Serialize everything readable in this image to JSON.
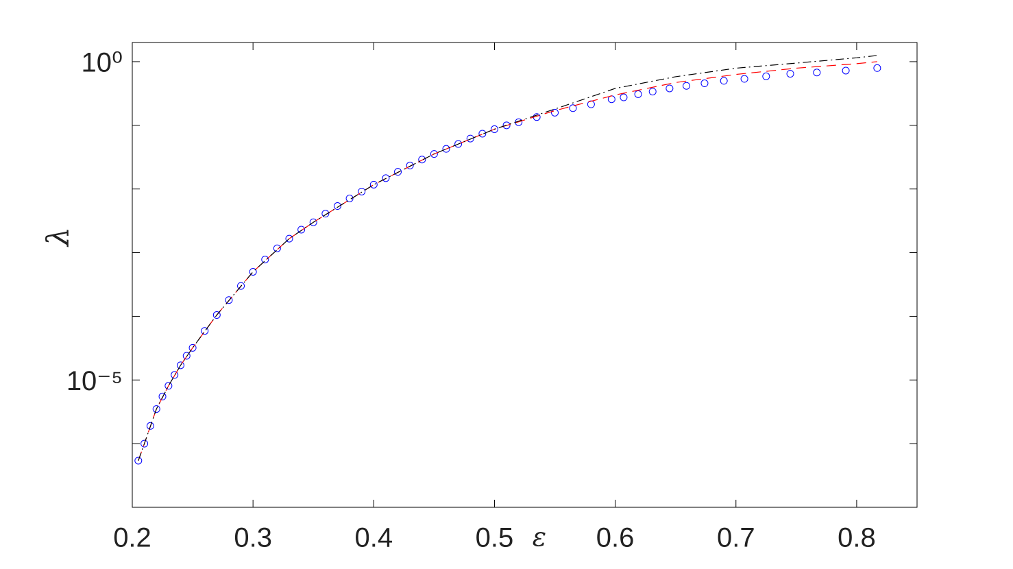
{
  "chart_data": {
    "type": "scatter",
    "x_label": "ε",
    "y_label": "λ",
    "xlim": [
      0.2,
      0.85
    ],
    "xticks": [
      0.2,
      0.3,
      0.4,
      0.5,
      0.6,
      0.7,
      0.8
    ],
    "ylim": [
      1e-07,
      2
    ],
    "y_scale": "log",
    "yticks": [
      {
        "value": 1,
        "label": "10⁰"
      },
      {
        "value": 1e-05,
        "label": "10⁻⁵"
      }
    ],
    "y_minor_ticks": [
      1e-06,
      0.0001,
      0.001,
      0.01,
      0.1
    ],
    "series": [
      {
        "style": "markers",
        "color": "#0000ff",
        "x": [
          0.205,
          0.21,
          0.215,
          0.22,
          0.225,
          0.23,
          0.235,
          0.24,
          0.245,
          0.25,
          0.26,
          0.27,
          0.28,
          0.29,
          0.3,
          0.31,
          0.32,
          0.33,
          0.34,
          0.35,
          0.36,
          0.37,
          0.38,
          0.39,
          0.4,
          0.41,
          0.42,
          0.43,
          0.44,
          0.45,
          0.46,
          0.47,
          0.48,
          0.49,
          0.5,
          0.51,
          0.52,
          0.535,
          0.55,
          0.565,
          0.58,
          0.597,
          0.607,
          0.619,
          0.631,
          0.645,
          0.659,
          0.674,
          0.69,
          0.707,
          0.725,
          0.745,
          0.767,
          0.791,
          0.817
        ],
        "values": [
          5.4e-07,
          1e-06,
          1.9e-06,
          3.5e-06,
          5.5e-06,
          8.1e-06,
          1.2e-05,
          1.7e-05,
          2.4e-05,
          3.2e-05,
          5.9e-05,
          0.000105,
          0.00018,
          0.0003,
          0.0005,
          0.00078,
          0.00117,
          0.00166,
          0.0023,
          0.003,
          0.0041,
          0.0054,
          0.0071,
          0.0091,
          0.0117,
          0.0148,
          0.0186,
          0.0234,
          0.029,
          0.0355,
          0.0427,
          0.051,
          0.062,
          0.074,
          0.087,
          0.1,
          0.112,
          0.135,
          0.158,
          0.186,
          0.214,
          0.257,
          0.275,
          0.309,
          0.339,
          0.38,
          0.417,
          0.457,
          0.5,
          0.537,
          0.589,
          0.646,
          0.676,
          0.724,
          0.794
        ]
      },
      {
        "style": "dashed",
        "color": "#ff0000",
        "x": [
          0.205,
          0.21,
          0.22,
          0.23,
          0.24,
          0.25,
          0.27,
          0.3,
          0.33,
          0.35,
          0.4,
          0.45,
          0.5,
          0.55,
          0.6,
          0.65,
          0.7,
          0.75,
          0.8,
          0.817
        ],
        "values": [
          5.4e-07,
          1e-06,
          3.5e-06,
          8.1e-06,
          1.7e-05,
          3.2e-05,
          0.000105,
          0.0005,
          0.00166,
          0.003,
          0.0117,
          0.0355,
          0.087,
          0.17,
          0.3,
          0.47,
          0.63,
          0.79,
          0.93,
          1.0
        ]
      },
      {
        "style": "dashdot",
        "color": "#000000",
        "x": [
          0.205,
          0.21,
          0.22,
          0.23,
          0.24,
          0.25,
          0.27,
          0.3,
          0.33,
          0.35,
          0.4,
          0.45,
          0.5,
          0.55,
          0.6,
          0.65,
          0.7,
          0.75,
          0.8,
          0.817
        ],
        "values": [
          5.4e-07,
          1e-06,
          3.5e-06,
          8.1e-06,
          1.7e-05,
          3.2e-05,
          0.000105,
          0.0005,
          0.00166,
          0.003,
          0.0117,
          0.0355,
          0.087,
          0.18,
          0.38,
          0.58,
          0.79,
          0.95,
          1.15,
          1.25
        ]
      }
    ]
  }
}
